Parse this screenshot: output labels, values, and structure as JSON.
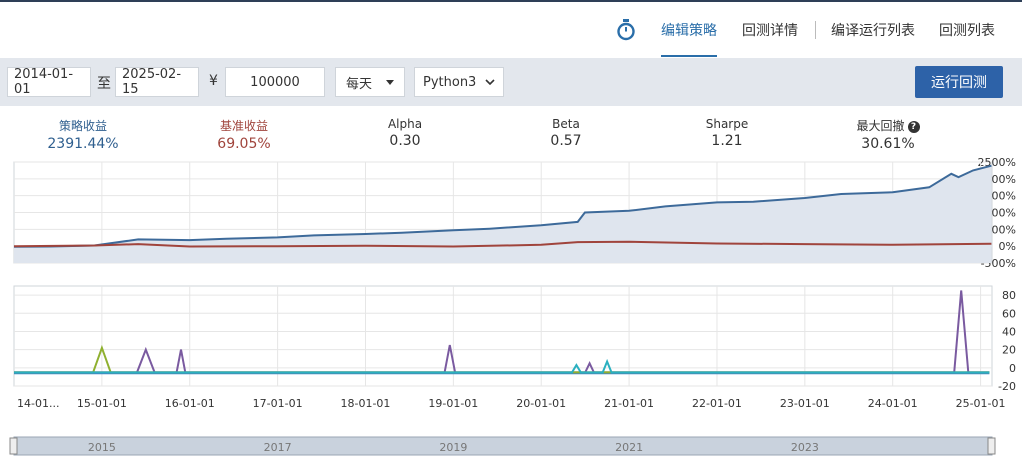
{
  "nav": {
    "tabs": [
      {
        "label": "编辑策略",
        "active": true
      },
      {
        "label": "回测详情"
      },
      {
        "label": "编译运行列表"
      },
      {
        "label": "回测列表"
      }
    ],
    "timer_icon": "stopwatch-icon"
  },
  "controls": {
    "start_date": "2014-01-01",
    "to_label": "至",
    "end_date": "2025-02-15",
    "currency_symbol": "¥",
    "capital": "100000",
    "frequency": "每天",
    "language": "Python3",
    "run_label": "运行回测"
  },
  "stats": [
    {
      "label": "策略收益",
      "value": "2391.44%",
      "color": "#2f5f8f"
    },
    {
      "label": "基准收益",
      "value": "69.05%",
      "color": "#a0443c"
    },
    {
      "label": "Alpha",
      "value": "0.30",
      "color": "#333333"
    },
    {
      "label": "Beta",
      "value": "0.57",
      "color": "#333333"
    },
    {
      "label": "Sharpe",
      "value": "1.21",
      "color": "#333333"
    },
    {
      "label": "最大回撤",
      "value": "30.61%",
      "color": "#333333",
      "help": true
    }
  ],
  "chart_data": [
    {
      "type": "area",
      "y_ticks": [
        "2500%",
        "2000%",
        "1500%",
        "1000%",
        "500%",
        "0%",
        "-500%"
      ],
      "ylim": [
        -500,
        2500
      ],
      "series": [
        {
          "color": "#3d6a9a",
          "x": [
            "2014-01-01",
            "2014-06-01",
            "2014-12-01",
            "2015-06-01",
            "2016-01-01",
            "2016-06-01",
            "2017-01-01",
            "2017-06-01",
            "2018-01-01",
            "2018-06-01",
            "2019-01-01",
            "2019-06-01",
            "2020-01-01",
            "2020-06-01",
            "2020-07-01",
            "2021-01-01",
            "2021-06-01",
            "2022-01-01",
            "2022-06-01",
            "2023-01-01",
            "2023-06-01",
            "2024-01-01",
            "2024-06-01",
            "2024-09-01",
            "2024-10-01",
            "2024-12-01",
            "2025-02-15"
          ],
          "values": [
            -20,
            -10,
            20,
            200,
            180,
            220,
            260,
            320,
            360,
            400,
            470,
            520,
            620,
            720,
            1000,
            1050,
            1180,
            1300,
            1320,
            1430,
            1550,
            1600,
            1750,
            2150,
            2050,
            2250,
            2391
          ]
        },
        {
          "color": "#a0443c",
          "x": [
            "2014-01-01",
            "2014-12-01",
            "2015-06-01",
            "2016-01-01",
            "2017-01-01",
            "2018-01-01",
            "2019-01-01",
            "2020-01-01",
            "2020-06-01",
            "2021-01-01",
            "2022-01-01",
            "2023-01-01",
            "2024-01-01",
            "2025-02-15"
          ],
          "values": [
            0,
            20,
            60,
            -10,
            0,
            10,
            -10,
            40,
            120,
            130,
            80,
            60,
            40,
            69
          ]
        }
      ]
    },
    {
      "type": "line",
      "y_ticks": [
        "80",
        "60",
        "40",
        "20",
        "0",
        "-20"
      ],
      "ylim": [
        -20,
        90
      ],
      "x_ticks": [
        "14-01...",
        "15-01-01",
        "16-01-01",
        "17-01-01",
        "18-01-01",
        "19-01-01",
        "20-01-01",
        "21-01-01",
        "22-01-01",
        "23-01-01",
        "24-01-01",
        "25-01-01"
      ],
      "series": [
        {
          "color": "#f0902a",
          "x": [
            2014.0,
            2025.1
          ],
          "values": [
            -5,
            -5
          ]
        },
        {
          "color": "#3a86c8",
          "x": [
            2014.0,
            2025.1
          ],
          "values": [
            -6,
            -6
          ]
        },
        {
          "color": "#7a5aa0",
          "x": [
            2014.0,
            2015.4,
            2015.5,
            2015.6,
            2015.85,
            2015.9,
            2015.95,
            2018.9,
            2018.96,
            2019.02,
            2020.5,
            2020.55,
            2020.6,
            2024.7,
            2024.78,
            2024.86,
            2025.1
          ],
          "values": [
            -5,
            -5,
            20,
            -5,
            -5,
            20,
            -5,
            -5,
            25,
            -5,
            -5,
            5,
            -5,
            -5,
            85,
            -5,
            -5
          ]
        },
        {
          "color": "#8fb02f",
          "x": [
            2014.0,
            2014.9,
            2015.0,
            2015.1,
            2025.1
          ],
          "values": [
            -5,
            -5,
            22,
            -5,
            -5
          ]
        },
        {
          "color": "#2ab0c0",
          "x": [
            2014.0,
            2020.35,
            2020.4,
            2020.45,
            2020.7,
            2020.75,
            2020.8,
            2025.1
          ],
          "values": [
            -5,
            -5,
            3,
            -5,
            -5,
            7,
            -5,
            -5
          ]
        }
      ]
    }
  ],
  "range_slider": {
    "labels": [
      "2015",
      "2017",
      "2019",
      "2021",
      "2023"
    ]
  }
}
